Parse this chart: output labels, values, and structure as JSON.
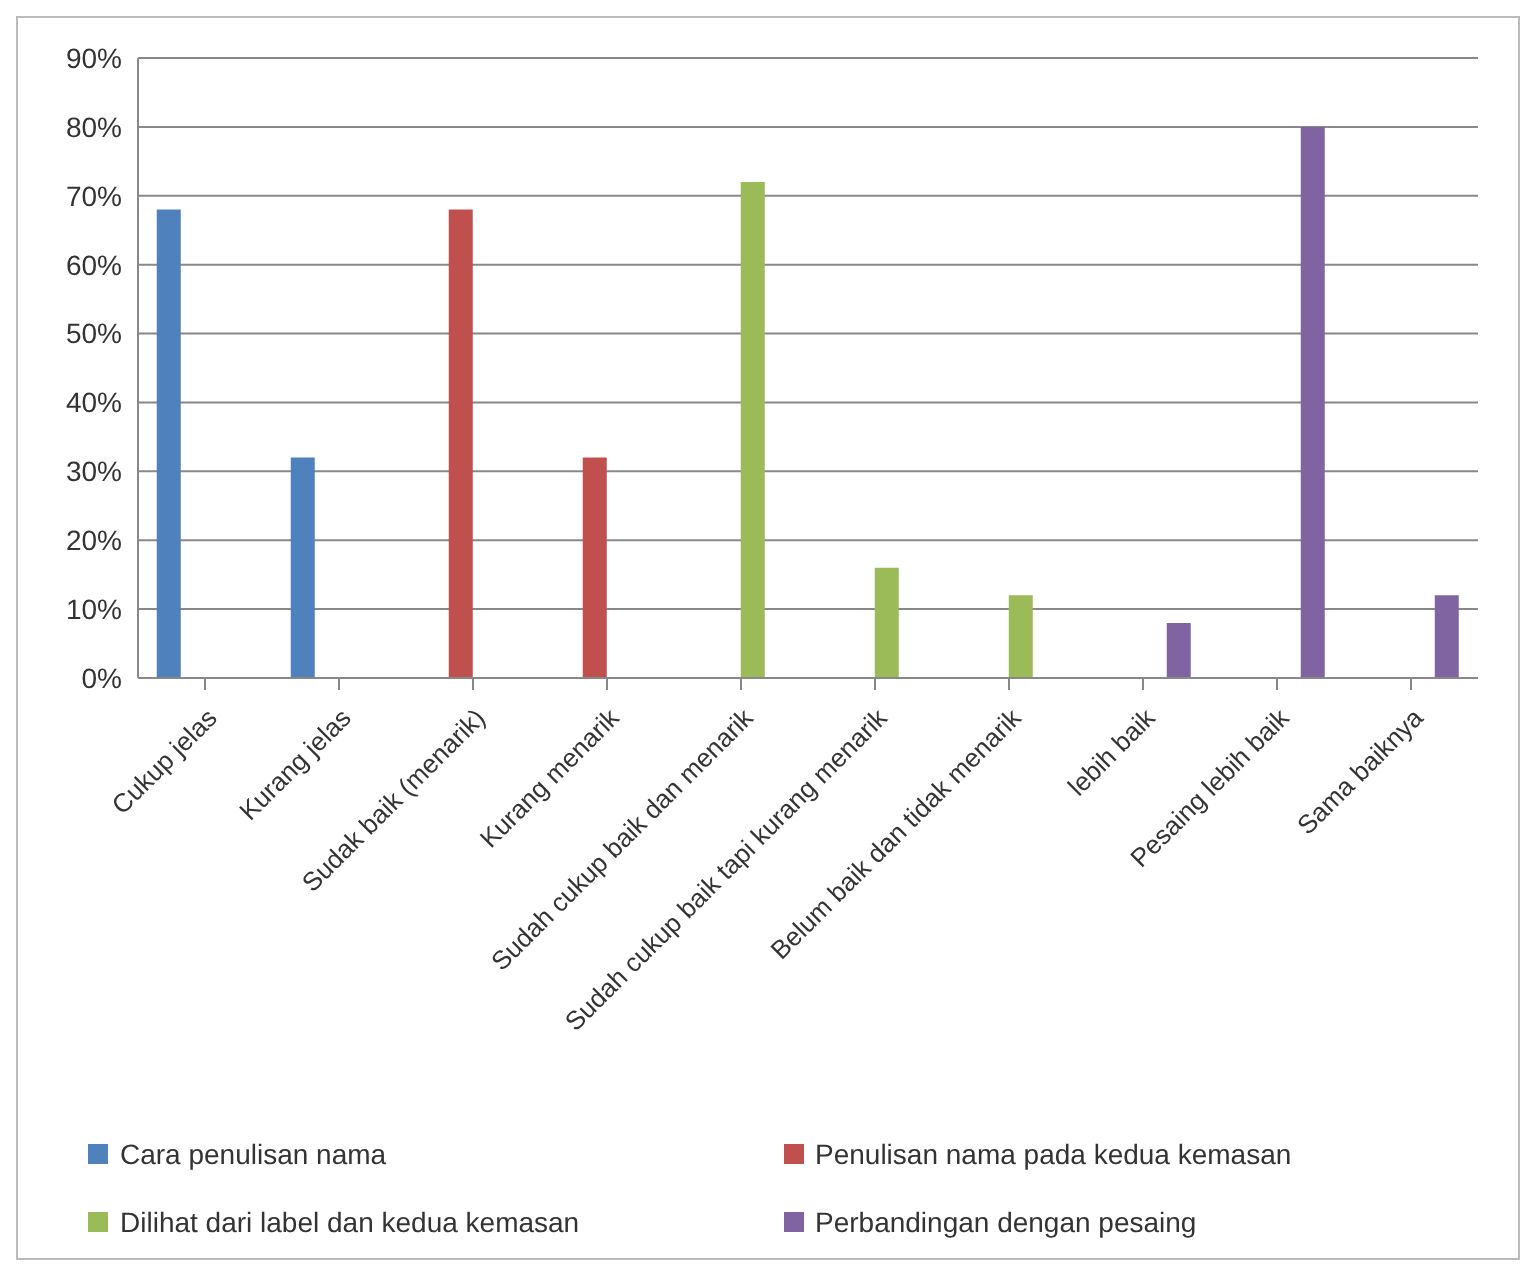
{
  "chart_data": {
    "type": "bar",
    "categories": [
      "Cukup jelas",
      "Kurang jelas",
      "Sudak baik (menarik)",
      "Kurang menarik",
      "Sudah cukup baik dan menarik",
      "Sudah cukup baik tapi kurang menarik",
      "Belum baik dan tidak menarik",
      "lebih baik",
      "Pesaing lebih baik",
      "Sama baiknya"
    ],
    "series": [
      {
        "name": "Cara penulisan nama",
        "color": "#4f81bd",
        "values": [
          68,
          32,
          null,
          null,
          null,
          null,
          null,
          null,
          null,
          null
        ]
      },
      {
        "name": "Penulisan nama pada kedua kemasan",
        "color": "#c0504d",
        "values": [
          null,
          null,
          68,
          32,
          null,
          null,
          null,
          null,
          null,
          null
        ]
      },
      {
        "name": "Dilihat dari label dan kedua kemasan",
        "color": "#9bbb59",
        "values": [
          null,
          null,
          null,
          null,
          72,
          16,
          12,
          null,
          null,
          null
        ]
      },
      {
        "name": "Perbandingan dengan pesaing",
        "color": "#8064a2",
        "values": [
          null,
          null,
          null,
          null,
          null,
          null,
          null,
          8,
          80,
          12
        ]
      }
    ],
    "ylim": [
      0,
      90
    ],
    "yticks": [
      {
        "value": 0,
        "label": "0%"
      },
      {
        "value": 10,
        "label": "10%"
      },
      {
        "value": 20,
        "label": "20%"
      },
      {
        "value": 30,
        "label": "30%"
      },
      {
        "value": 40,
        "label": "40%"
      },
      {
        "value": 50,
        "label": "50%"
      },
      {
        "value": 60,
        "label": "60%"
      },
      {
        "value": 70,
        "label": "70%"
      },
      {
        "value": 80,
        "label": "80%"
      },
      {
        "value": 90,
        "label": "90%"
      }
    ],
    "grid": "y",
    "legend": "bottom"
  }
}
